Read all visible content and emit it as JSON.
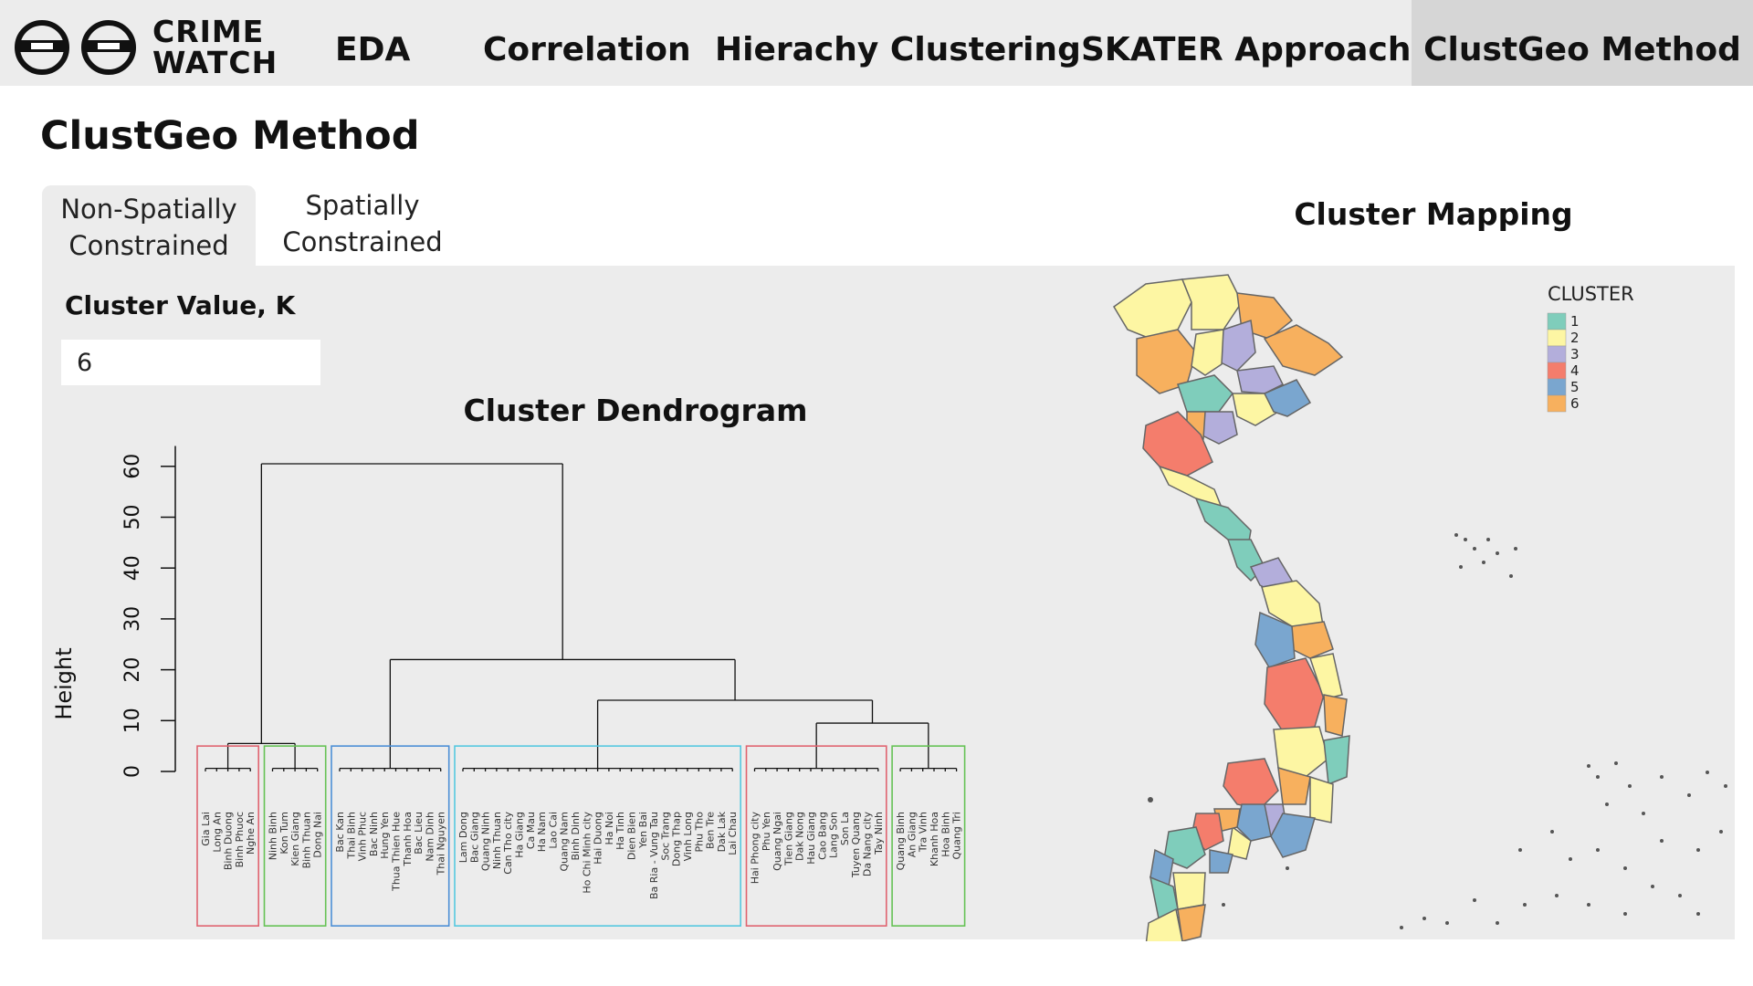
{
  "app": {
    "logo_line1": "CRIME",
    "logo_line2": "WATCH"
  },
  "nav": {
    "items": [
      {
        "label": "EDA"
      },
      {
        "label": "Correlation"
      },
      {
        "label": "Hierachy Clustering"
      },
      {
        "label": "SKATER Approach"
      },
      {
        "label": "ClustGeo Method"
      }
    ],
    "active": "ClustGeo Method"
  },
  "page": {
    "title": "ClustGeo Method"
  },
  "tabs": [
    {
      "line1": "Non-Spatially",
      "line2": "Constrained",
      "active": true
    },
    {
      "line1": "Spatially",
      "line2": "Constrained",
      "active": false
    }
  ],
  "controls": {
    "k_label": "Cluster Value, K",
    "k_value": "6"
  },
  "dendrogram": {
    "title": "Cluster Dendrogram",
    "ylabel": "Height",
    "yticks": [
      "0",
      "10",
      "20",
      "30",
      "40",
      "50",
      "60"
    ],
    "groups": [
      {
        "color": "#e06470",
        "labels": [
          "Gia Lai",
          "Long An",
          "Binh Duong",
          "Binh Phuoc",
          "Nghe An"
        ]
      },
      {
        "color": "#66c255",
        "labels": [
          "Ninh Binh",
          "Kon Tum",
          "Kien Giang",
          "Binh Thuan",
          "Dong Nai"
        ]
      },
      {
        "color": "#4c8fd6",
        "labels": [
          "Bac Kan",
          "Thai Binh",
          "Vinh Phuc",
          "Bac Ninh",
          "Hung Yen",
          "Thua Thien Hue",
          "Thanh Hoa",
          "Bac Lieu",
          "Nam Dinh",
          "Thai Nguyen"
        ]
      },
      {
        "color": "#55c8e0",
        "labels": [
          "Lam Dong",
          "Bac Giang",
          "Quang Ninh",
          "Ninh Thuan",
          "Can Tho city",
          "Ha Giang",
          "Ca Mau",
          "Ha Nam",
          "Lao Cai",
          "Quang Nam",
          "Binh Dinh",
          "Ho Chi Minh city",
          "Hai Duong",
          "Ha Noi",
          "Ha Tinh",
          "Dien Bien",
          "Yen Bai",
          "Ba Ria - Vung Tau",
          "Soc Trang",
          "Dong Thap",
          "Vinh Long",
          "Phu Tho",
          "Ben Tre",
          "Dak Lak",
          "Lai Chau"
        ]
      },
      {
        "color": "#e06470",
        "labels": [
          "Hai Phong city",
          "Phu Yen",
          "Quang Ngai",
          "Tien Giang",
          "Dak Nong",
          "Hau Giang",
          "Cao Bang",
          "Lang Son",
          "Son La",
          "Tuyen Quang",
          "Da Nang city",
          "Tay Ninh"
        ]
      },
      {
        "color": "#66c255",
        "labels": [
          "Quang Binh",
          "An Giang",
          "Tra Vinh",
          "Khanh Hoa",
          "Hoa Binh",
          "Quang Tri"
        ]
      }
    ]
  },
  "map": {
    "title": "Cluster Mapping",
    "legend_title": "CLUSTER",
    "legend": [
      {
        "label": "1",
        "color": "#7fcdbb"
      },
      {
        "label": "2",
        "color": "#fdf6a3"
      },
      {
        "label": "3",
        "color": "#b3aedb"
      },
      {
        "label": "4",
        "color": "#f47d6c"
      },
      {
        "label": "5",
        "color": "#7aa6cf"
      },
      {
        "label": "6",
        "color": "#f7b05e"
      }
    ]
  }
}
